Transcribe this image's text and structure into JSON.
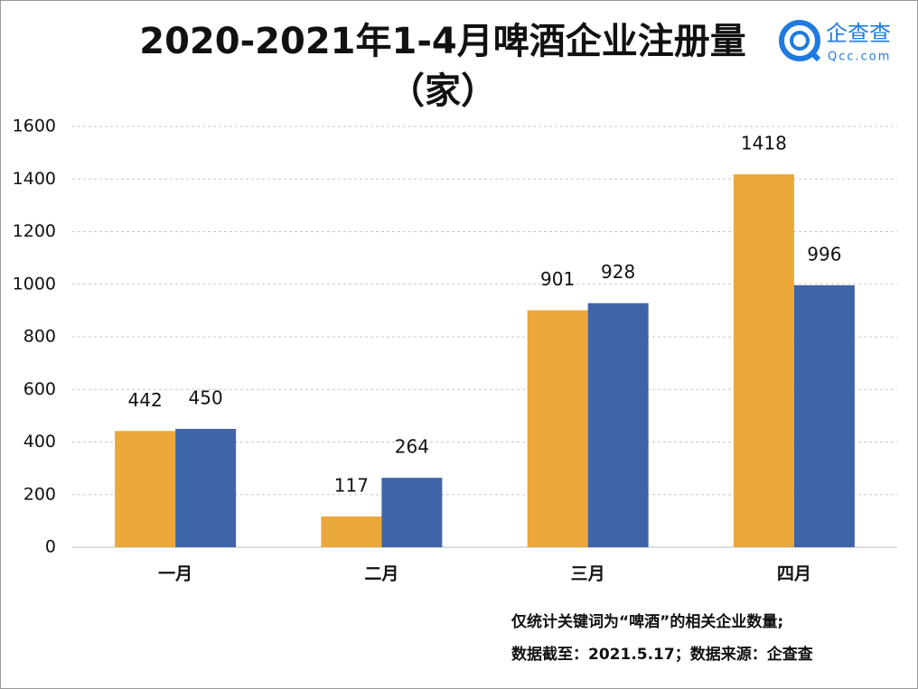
{
  "chart_data": {
    "type": "bar",
    "title": [
      "2020-2021年1-4月啤酒企业注册量",
      "（家）"
    ],
    "logo": {
      "name": "企查查",
      "url": "Qcc.com"
    },
    "categories": [
      "一月",
      "二月",
      "三月",
      "四月"
    ],
    "series": [
      {
        "color": "#eba83a",
        "values": [
          442,
          117,
          901,
          1418
        ]
      },
      {
        "color": "#3f65a8",
        "values": [
          450,
          264,
          928,
          996
        ]
      }
    ],
    "ylim": [
      0,
      1600
    ],
    "yticks": [
      0,
      200,
      400,
      600,
      800,
      1000,
      1200,
      1400,
      1600
    ],
    "grid": true,
    "notes": [
      "仅统计关键词为“啤酒”的相关企业数量;",
      "数据截至：2021.5.17；数据来源：企查查"
    ]
  }
}
